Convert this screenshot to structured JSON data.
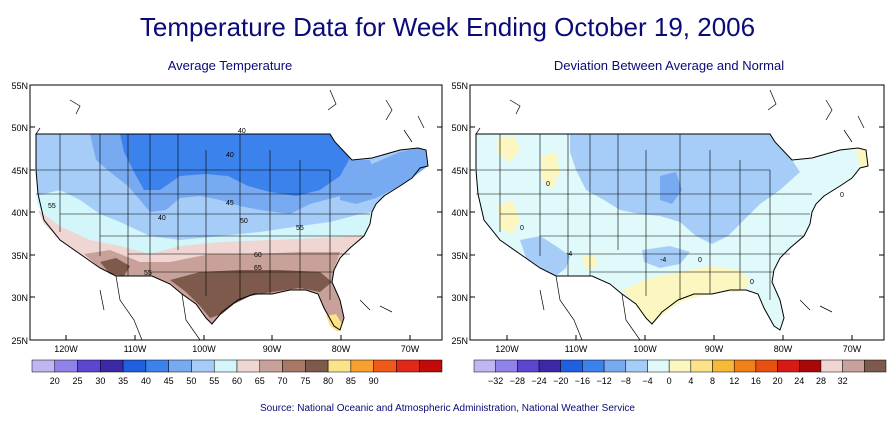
{
  "page": {
    "title": "Temperature Data for Week Ending October 19, 2006",
    "source": "Source:  National Oceanic and Atmospheric Administration, National Weather Service"
  },
  "left_map": {
    "subtitle": "Average Temperature",
    "lat_labels": [
      "55N",
      "50N",
      "45N",
      "40N",
      "35N",
      "30N",
      "25N"
    ],
    "lon_labels": [
      "120W",
      "110W",
      "100W",
      "90W",
      "80W",
      "70W"
    ],
    "contour_labels": [
      "40",
      "40",
      "45",
      "50",
      "55",
      "55",
      "55",
      "60",
      "65",
      "40"
    ],
    "legend_colors": [
      "#c2b6f2",
      "#8f82e8",
      "#5a46d0",
      "#3b29a8",
      "#1f5fe0",
      "#3c82ec",
      "#78aaf2",
      "#a6cdf8",
      "#d2f6fa",
      "#f0d6d2",
      "#c8a29a",
      "#a87866",
      "#7e5a4c",
      "#fce288",
      "#f8a030",
      "#f05a18",
      "#e22818",
      "#c20a0a"
    ],
    "legend_labels": [
      "20",
      "25",
      "30",
      "35",
      "40",
      "45",
      "50",
      "55",
      "60",
      "65",
      "70",
      "75",
      "80",
      "85",
      "90"
    ]
  },
  "right_map": {
    "subtitle": "Deviation Between Average and Normal",
    "lat_labels": [
      "55N",
      "50N",
      "45N",
      "40N",
      "35N",
      "30N",
      "25N"
    ],
    "lon_labels": [
      "120W",
      "110W",
      "100W",
      "90W",
      "80W",
      "70W"
    ],
    "contour_labels": [
      "0",
      "0",
      "-4",
      "-4",
      "0",
      "0",
      "0"
    ],
    "legend_colors": [
      "#c2b6f2",
      "#8f82e8",
      "#5a46d0",
      "#3b29a8",
      "#1f5fe0",
      "#3c82ec",
      "#78aaf2",
      "#a6cdf8",
      "#e0fafc",
      "#fcf6c0",
      "#fce288",
      "#f8b838",
      "#f08018",
      "#e85010",
      "#d81a14",
      "#a80808",
      "#f0d6d2",
      "#c8a29a",
      "#7e5a4c"
    ],
    "legend_labels": [
      "−32",
      "−28",
      "−24",
      "−20",
      "−16",
      "−12",
      "−8",
      "−4",
      "0",
      "4",
      "8",
      "12",
      "16",
      "20",
      "24",
      "28",
      "32"
    ]
  }
}
